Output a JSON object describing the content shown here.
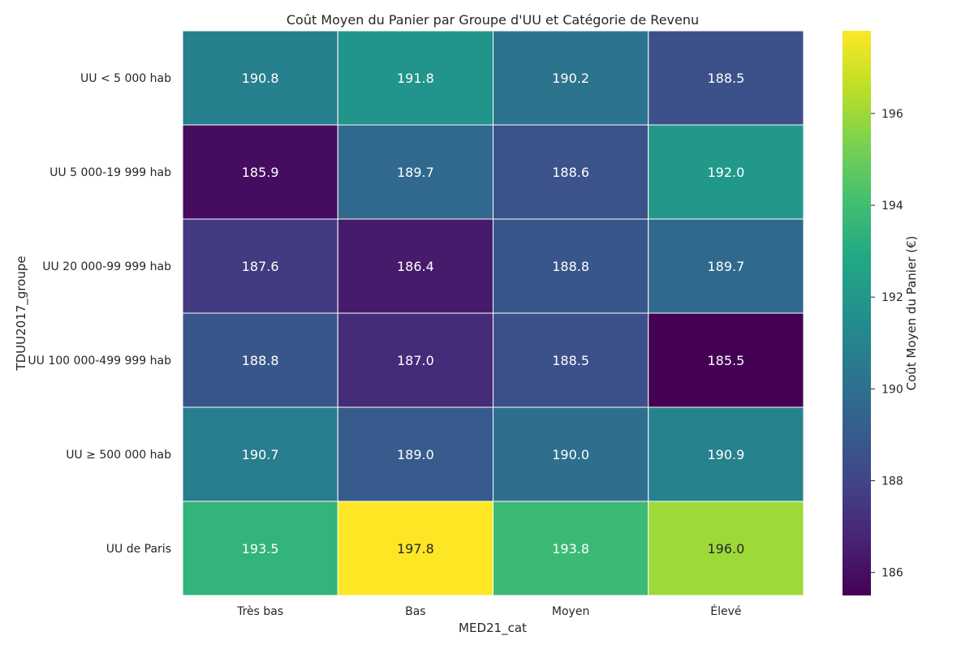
{
  "chart_data": {
    "type": "heatmap",
    "title": "Coût Moyen du Panier par Groupe d'UU et Catégorie de Revenu",
    "xlabel": "MED21_cat",
    "ylabel": "TDUU2017_groupe",
    "x_categories": [
      "Très bas",
      "Bas",
      "Moyen",
      "Élevé"
    ],
    "y_categories": [
      "UU < 5 000 hab",
      "UU 5 000-19 999 hab",
      "UU 20 000-99 999 hab",
      "UU 100 000-499 999 hab",
      "UU ≥ 500 000 hab",
      "UU de Paris"
    ],
    "values": [
      [
        190.8,
        191.8,
        190.2,
        188.5
      ],
      [
        185.9,
        189.7,
        188.6,
        192.0
      ],
      [
        187.6,
        186.4,
        188.8,
        189.7
      ],
      [
        188.8,
        187.0,
        188.5,
        185.5
      ],
      [
        190.7,
        189.0,
        190.0,
        190.9
      ],
      [
        193.5,
        197.8,
        193.8,
        196.0
      ]
    ],
    "colorbar": {
      "label": "Coût Moyen du Panier (€)",
      "min": 185.5,
      "max": 197.8,
      "ticks": [
        186,
        188,
        190,
        192,
        194,
        196
      ],
      "colormap": "viridis"
    }
  }
}
